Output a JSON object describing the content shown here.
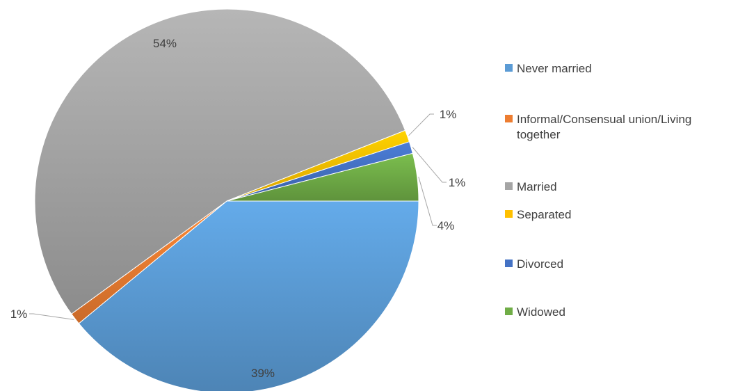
{
  "chart_data": {
    "type": "pie",
    "title": "",
    "categories": [
      "Never married",
      "Informal/Consensual union/Living together",
      "Married",
      "Separated",
      "Divorced",
      "Widowed"
    ],
    "values": [
      39,
      1,
      54,
      1,
      1,
      4
    ],
    "data_labels": [
      "39%",
      "1%",
      "54%",
      "1%",
      "1%",
      "4%"
    ],
    "colors": [
      "#5B9BD5",
      "#ED7D31",
      "#A5A5A5",
      "#FFC000",
      "#4472C4",
      "#70AD47"
    ],
    "legend_position": "right"
  },
  "legend": {
    "items": [
      {
        "label": "Never married",
        "color": "#5B9BD5"
      },
      {
        "label": "Informal/Consensual union/Living together",
        "color": "#ED7D31"
      },
      {
        "label": "Married",
        "color": "#A5A5A5"
      },
      {
        "label": "Separated",
        "color": "#FFC000"
      },
      {
        "label": "Divorced",
        "color": "#4472C4"
      },
      {
        "label": "Widowed",
        "color": "#70AD47"
      }
    ]
  }
}
